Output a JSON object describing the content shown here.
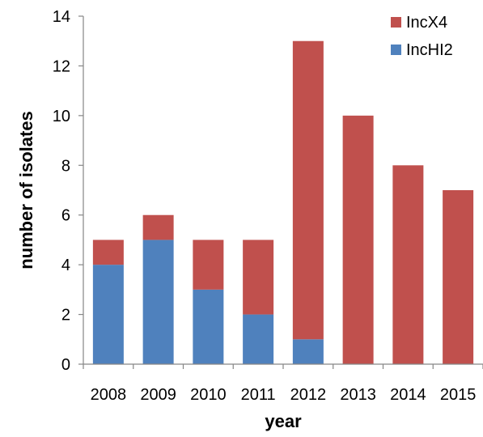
{
  "chart_data": {
    "type": "bar",
    "stacked": true,
    "categories": [
      "2008",
      "2009",
      "2010",
      "2011",
      "2012",
      "2013",
      "2014",
      "2015"
    ],
    "series": [
      {
        "name": "IncHI2",
        "color": "#4F81BD",
        "values": [
          4,
          5,
          3,
          2,
          1,
          0,
          0,
          0
        ]
      },
      {
        "name": "IncX4",
        "color": "#C0504D",
        "values": [
          1,
          1,
          2,
          3,
          12,
          10,
          8,
          7
        ]
      }
    ],
    "legend_order": [
      "IncX4",
      "IncHI2"
    ],
    "legend_position": "top-right",
    "xlabel": "year",
    "ylabel": "number of isolates",
    "ylim": [
      0,
      14
    ],
    "yticks": [
      "0",
      "2",
      "4",
      "6",
      "8",
      "10",
      "12",
      "14"
    ],
    "grid": false
  }
}
